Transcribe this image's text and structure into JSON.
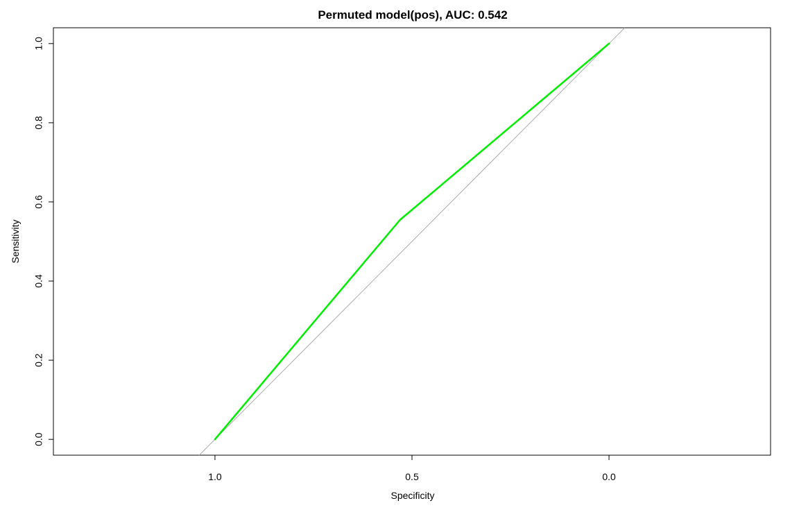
{
  "chart_data": {
    "type": "line",
    "title": "Permuted model(pos), AUC: 0.542",
    "xlabel": "Specificity",
    "ylabel": "Sensitivity",
    "x_reversed": true,
    "xlim": [
      1.41,
      -0.41
    ],
    "ylim": [
      -0.04,
      1.04
    ],
    "x_ticks": [
      "1.0",
      "0.5",
      "0.0"
    ],
    "x_tick_values": [
      1.0,
      0.5,
      0.0
    ],
    "y_ticks": [
      "0.0",
      "0.2",
      "0.4",
      "0.6",
      "0.8",
      "1.0"
    ],
    "y_tick_values": [
      0.0,
      0.2,
      0.4,
      0.6,
      0.8,
      1.0
    ],
    "grid": false,
    "legend": "none",
    "series": [
      {
        "color": "#00ee00",
        "points": [
          {
            "specificity": 1.0,
            "sensitivity": 0.0
          },
          {
            "specificity": 0.53,
            "sensitivity": 0.555
          },
          {
            "specificity": 0.5,
            "sensitivity": 0.58
          },
          {
            "specificity": 0.0,
            "sensitivity": 1.0
          }
        ]
      }
    ],
    "reference_line": {
      "color": "#aaaaaa",
      "from": {
        "specificity": 1.04,
        "sensitivity": -0.04
      },
      "to": {
        "specificity": -0.04,
        "sensitivity": 1.04
      }
    }
  }
}
